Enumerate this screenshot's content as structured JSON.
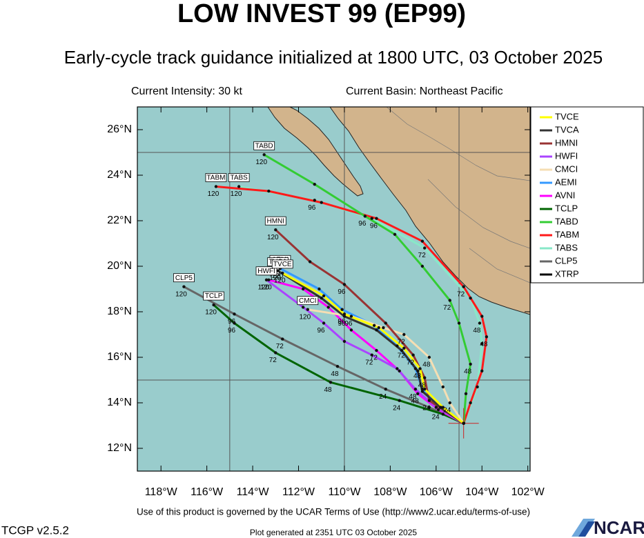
{
  "chart_data": {
    "type": "track",
    "title": "LOW INVEST 99 (EP99)",
    "subtitle": "Early-cycle track guidance initialized at 1800 UTC, 03 October 2025",
    "annotations": [
      "Current Intensity: 30 kt",
      "Current Basin: Northeast Pacific"
    ],
    "footer": [
      "Use of this product is governed by the UCAR Terms of Use (http://www2.ucar.edu/terms-of-use)",
      "TCGP v2.5.2",
      "Plot generated at 2351 UTC   03 October 2025",
      "NCAR"
    ],
    "xlim": [
      -119.03,
      -101.9
    ],
    "ylim": [
      11,
      27
    ],
    "xticks": [
      {
        "value": -118,
        "label": "118°W"
      },
      {
        "value": -116,
        "label": "116°W"
      },
      {
        "value": -114,
        "label": "114°W"
      },
      {
        "value": -112,
        "label": "112°W"
      },
      {
        "value": -110,
        "label": "110°W"
      },
      {
        "value": -108,
        "label": "108°W"
      },
      {
        "value": -106,
        "label": "106°W"
      },
      {
        "value": -104,
        "label": "104°W"
      },
      {
        "value": -102,
        "label": "102°W"
      }
    ],
    "yticks": [
      {
        "value": 12,
        "label": "12°N"
      },
      {
        "value": 14,
        "label": "14°N"
      },
      {
        "value": 16,
        "label": "16°N"
      },
      {
        "value": 18,
        "label": "18°N"
      },
      {
        "value": 20,
        "label": "20°N"
      },
      {
        "value": 22,
        "label": "22°N"
      },
      {
        "value": 24,
        "label": "24°N"
      },
      {
        "value": 26,
        "label": "26°N"
      }
    ],
    "grid_x": [
      -115,
      -110,
      -105
    ],
    "grid_y": [
      15,
      25
    ],
    "series": [
      {
        "name": "TVCE",
        "color": "#ffff00",
        "x": [
          -104.8,
          -105.7,
          -106.5,
          -106.7,
          -107.4,
          -108.5,
          -110.0,
          -110.9,
          -112.7
        ],
        "y": [
          13.1,
          13.8,
          14.6,
          15.5,
          16.4,
          17.3,
          17.9,
          18.7,
          19.7
        ],
        "labels": [
          null,
          null,
          null,
          "48",
          "72",
          null,
          "96",
          null,
          "120"
        ]
      },
      {
        "name": "TVCA",
        "color": "#333333",
        "x": [
          -104.8,
          -105.8,
          -106.6,
          -106.8,
          -107.5,
          -108.6,
          -110.0,
          -111.0,
          -112.9
        ],
        "y": [
          13.1,
          13.8,
          14.5,
          15.4,
          16.3,
          17.2,
          17.8,
          18.6,
          19.8
        ],
        "labels": [
          null,
          null,
          null,
          null,
          null,
          null,
          "96",
          null,
          "120"
        ]
      },
      {
        "name": "HMNI",
        "color": "#993333",
        "x": [
          -104.8,
          -106.3,
          -106.5,
          -107.0,
          -108.2,
          -110.0,
          -111.5,
          -113.0
        ],
        "y": [
          13.1,
          14.1,
          15.1,
          16.1,
          17.5,
          19.2,
          20.2,
          21.6
        ],
        "labels": [
          null,
          "24",
          "48",
          "72",
          null,
          "96",
          null,
          "120"
        ]
      },
      {
        "name": "HWFI",
        "color": "#aa44ff",
        "x": [
          -104.8,
          -106.0,
          -106.9,
          -107.7,
          -108.8,
          -110.0,
          -110.9,
          -111.8,
          -113.4
        ],
        "y": [
          13.1,
          13.8,
          14.6,
          15.5,
          16.1,
          16.7,
          17.5,
          18.2,
          19.4
        ],
        "labels": [
          null,
          null,
          "48",
          null,
          "72",
          null,
          "96",
          null,
          "120"
        ]
      },
      {
        "name": "CMCI",
        "color": "#f5deb3",
        "x": [
          -104.8,
          -105.4,
          -105.7,
          -106.3,
          -107.4,
          -108.3,
          -109.7,
          -111.6
        ],
        "y": [
          13.1,
          14.0,
          14.7,
          16.0,
          17.0,
          17.3,
          17.8,
          18.1
        ],
        "labels": [
          null,
          "24",
          null,
          "48",
          "72",
          null,
          "96",
          "120"
        ]
      },
      {
        "name": "AEMI",
        "color": "#3399ff",
        "x": [
          -104.8,
          -105.8,
          -106.6,
          -106.9,
          -107.7,
          -108.7,
          -110.1,
          -111.1,
          -112.8
        ],
        "y": [
          13.1,
          13.8,
          14.6,
          15.5,
          16.5,
          17.4,
          18.1,
          19.0,
          19.9
        ],
        "labels": [
          null,
          null,
          null,
          null,
          null,
          null,
          null,
          null,
          "120"
        ]
      },
      {
        "name": "AVNI",
        "color": "#ff00ff",
        "x": [
          -104.8,
          -105.9,
          -106.8,
          -107.6,
          -108.6,
          -109.7,
          -110.7,
          -111.8,
          -113.3
        ],
        "y": [
          13.1,
          13.7,
          14.4,
          15.4,
          16.3,
          17.2,
          18.2,
          19.0,
          19.4
        ],
        "labels": [
          null,
          "24",
          "48",
          null,
          "72",
          null,
          null,
          null,
          "120"
        ]
      },
      {
        "name": "TCLP",
        "color": "#006400",
        "x": [
          -104.8,
          -105.7,
          -107.6,
          -110.6,
          -113.0,
          -114.8,
          -115.7
        ],
        "y": [
          13.1,
          13.5,
          14.1,
          14.9,
          16.2,
          17.5,
          18.3
        ],
        "labels": [
          null,
          null,
          "24",
          "48",
          "72",
          "96",
          "120"
        ]
      },
      {
        "name": "TABD",
        "color": "#33cc33",
        "x": [
          -104.8,
          -104.7,
          -104.5,
          -105.0,
          -105.4,
          -106.6,
          -107.8,
          -109.1,
          -111.3,
          -113.5
        ],
        "y": [
          13.1,
          14.4,
          15.7,
          17.5,
          18.5,
          20.0,
          21.4,
          22.2,
          23.6,
          24.9
        ],
        "labels": [
          null,
          null,
          "48",
          null,
          "72",
          null,
          null,
          "96",
          null,
          "120"
        ]
      },
      {
        "name": "TABM",
        "color": "#ff1a1a",
        "x": [
          -104.8,
          -104.5,
          -104.0,
          -103.8,
          -104.0,
          -104.8,
          -106.6,
          -108.6,
          -111.0,
          -113.3,
          -115.6
        ],
        "y": [
          13.1,
          14.0,
          15.4,
          16.9,
          17.8,
          19.1,
          21.1,
          22.1,
          22.8,
          23.3,
          23.5
        ],
        "labels": [
          null,
          null,
          null,
          "48",
          null,
          "72",
          null,
          "96",
          null,
          null,
          "120"
        ]
      },
      {
        "name": "TABS",
        "color": "#88e8c8",
        "x": [
          -104.8,
          -104.2,
          -104.0,
          -104.1,
          -104.5,
          -106.5,
          -108.8,
          -111.3,
          -114.6
        ],
        "y": [
          13.1,
          14.7,
          16.6,
          17.5,
          18.6,
          20.8,
          22.1,
          22.9,
          23.5
        ],
        "labels": [
          null,
          null,
          null,
          "48",
          null,
          "72",
          null,
          "96",
          "120"
        ]
      },
      {
        "name": "CLP5",
        "color": "#666666",
        "x": [
          -104.8,
          -106.3,
          -108.2,
          -110.3,
          -112.7,
          -114.8,
          -117.0
        ],
        "y": [
          13.1,
          13.8,
          14.6,
          15.6,
          16.8,
          17.9,
          19.1
        ],
        "labels": [
          null,
          null,
          "24",
          "48",
          "72",
          "96",
          "120"
        ]
      },
      {
        "name": "XTRP",
        "color": "#000000",
        "x": [
          -104.8
        ],
        "y": [
          13.1
        ],
        "labels": [
          null
        ]
      }
    ]
  }
}
